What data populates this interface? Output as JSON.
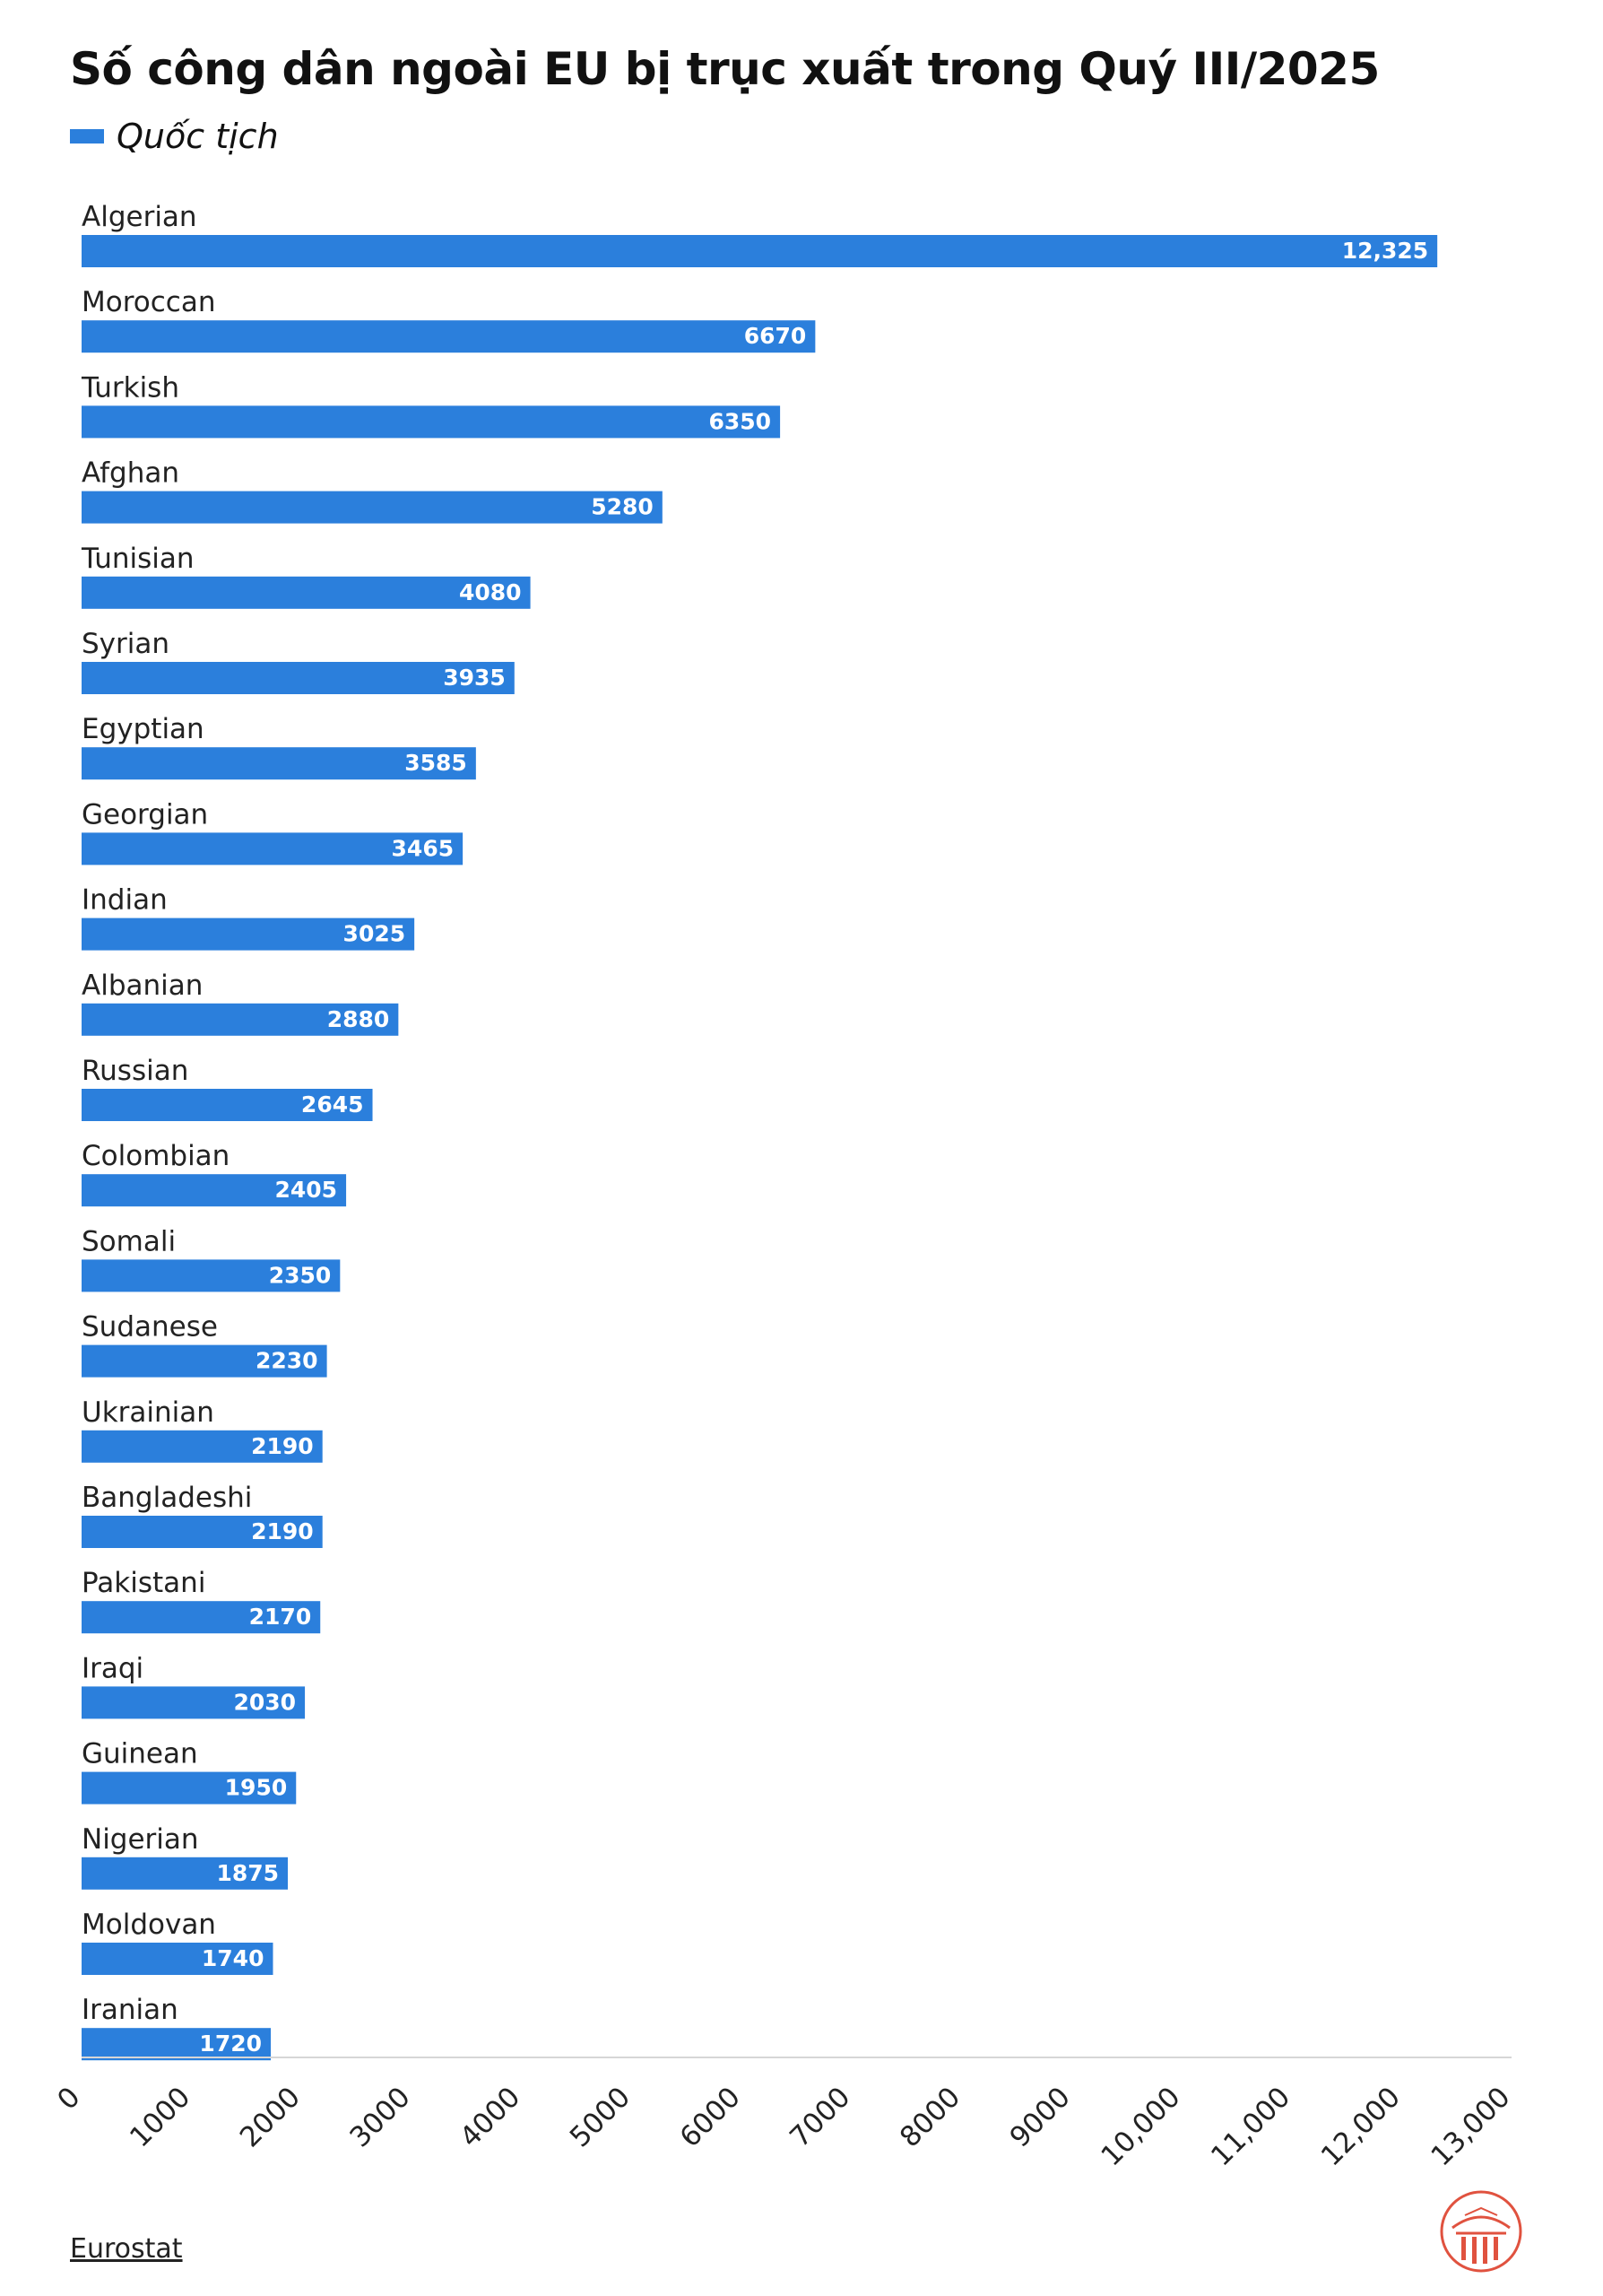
{
  "title": "Số công dân ngoài EU bị trục xuất trong Quý III/2025",
  "source": "Eurostat",
  "colors": {
    "bar": "#2b7fdc",
    "bar_dark": "#2166c0",
    "axis": "#d6d6d6",
    "logo": "#e0523f"
  },
  "chart_data": {
    "type": "bar",
    "orientation": "horizontal",
    "categories": [
      "Algerian",
      "Moroccan",
      "Turkish",
      "Afghan",
      "Tunisian",
      "Syrian",
      "Egyptian",
      "Georgian",
      "Indian",
      "Albanian",
      "Russian",
      "Colombian",
      "Somali",
      "Sudanese",
      "Ukrainian",
      "Bangladeshi",
      "Pakistani",
      "Iraqi",
      "Guinean",
      "Nigerian",
      "Moldovan",
      "Iranian"
    ],
    "series": [
      {
        "name": "Quốc tịch",
        "values": [
          12325,
          6670,
          6350,
          5280,
          4080,
          3935,
          3585,
          3465,
          3025,
          2880,
          2645,
          2405,
          2350,
          2230,
          2190,
          2190,
          2170,
          2030,
          1950,
          1875,
          1740,
          1720
        ],
        "labels": [
          "12,325",
          "6670",
          "6350",
          "5280",
          "4080",
          "3935",
          "3585",
          "3465",
          "3025",
          "2880",
          "2645",
          "2405",
          "2350",
          "2230",
          "2190",
          "2190",
          "2170",
          "2030",
          "1950",
          "1875",
          "1740",
          "1720"
        ]
      }
    ],
    "xlim": [
      0,
      13000
    ],
    "xticks": [
      0,
      1000,
      2000,
      3000,
      4000,
      5000,
      6000,
      7000,
      8000,
      9000,
      10000,
      11000,
      12000,
      13000
    ],
    "xtick_labels": [
      "0",
      "1000",
      "2000",
      "3000",
      "4000",
      "5000",
      "6000",
      "7000",
      "8000",
      "9000",
      "10,000",
      "11,000",
      "12,000",
      "13,000"
    ],
    "legend": "top-left",
    "grid": false
  }
}
